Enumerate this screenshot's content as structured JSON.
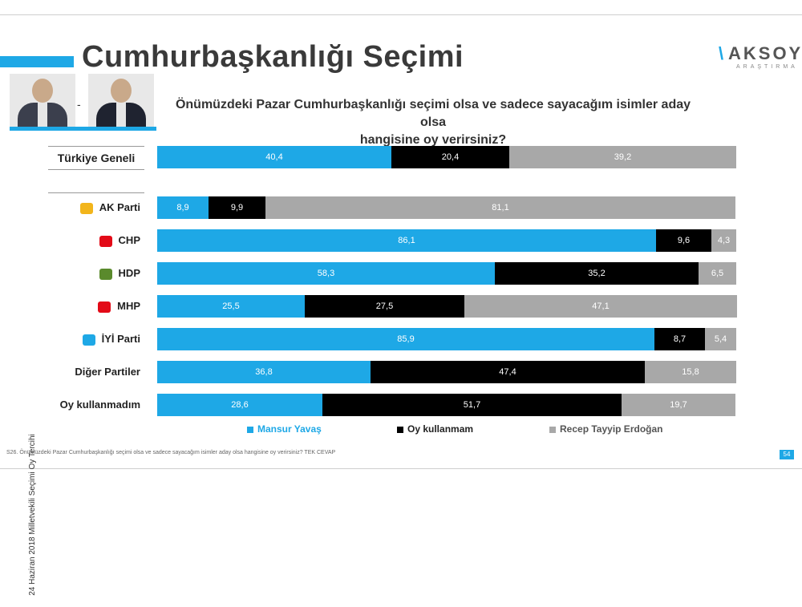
{
  "title": "Cumhurbaşkanlığı Seçimi",
  "logo": {
    "mark": "\\",
    "text": "AKSOY",
    "sub": "ARAŞTIRMA"
  },
  "photos": {
    "separator": "-"
  },
  "question_line1": "Önümüzdeki Pazar Cumhurbaşkanlığı seçimi olsa ve sadece sayacağım isimler aday olsa",
  "question_line2": "hangisine oy verirsiniz?",
  "side_label": "24 Haziran 2018 Milletvekili Seçimi Oy Tercihi",
  "footnote": "S26. Önümüzdeki Pazar Cumhurbaşkanlığı seçimi olsa ve sadece sayacağım isimler aday olsa hangisine oy verirsiniz? TEK CEVAP",
  "page_number": "54",
  "colors": {
    "blue": "#1ea8e6",
    "black": "#000000",
    "grey": "#a8a8a8"
  },
  "chart_data": {
    "type": "bar",
    "orientation": "horizontal-stacked-100",
    "categories": [
      "Türkiye Geneli",
      "AK Parti",
      "CHP",
      "HDP",
      "MHP",
      "İYİ Parti",
      "Diğer Partiler",
      "Oy kullanmadım"
    ],
    "category_icons": [
      "",
      "akp-bulb-icon",
      "chp-arrows-icon",
      "hdp-tree-icon",
      "mhp-crescents-icon",
      "iyi-sun-icon",
      "",
      ""
    ],
    "series": [
      {
        "name": "Mansur Yavaş",
        "color": "#1ea8e6",
        "values": [
          40.4,
          8.9,
          86.1,
          58.3,
          25.5,
          85.9,
          36.8,
          28.6
        ],
        "labels": [
          "40,4",
          "8,9",
          "86,1",
          "58,3",
          "25,5",
          "85,9",
          "36,8",
          "28,6"
        ]
      },
      {
        "name": "Oy kullanmam",
        "color": "#000000",
        "values": [
          20.4,
          9.9,
          9.6,
          35.2,
          27.5,
          8.7,
          47.4,
          51.7
        ],
        "labels": [
          "20,4",
          "9,9",
          "9,6",
          "35,2",
          "27,5",
          "8,7",
          "47,4",
          "51,7"
        ]
      },
      {
        "name": "Recep Tayyip Erdoğan",
        "color": "#a8a8a8",
        "values": [
          39.2,
          81.1,
          4.3,
          6.5,
          47.1,
          5.4,
          15.8,
          19.7
        ],
        "labels": [
          "39,2",
          "81,1",
          "4,3",
          "6,5",
          "47,1",
          "5,4",
          "15,8",
          "19,7"
        ]
      }
    ],
    "legend_position": "bottom",
    "grid": false
  }
}
